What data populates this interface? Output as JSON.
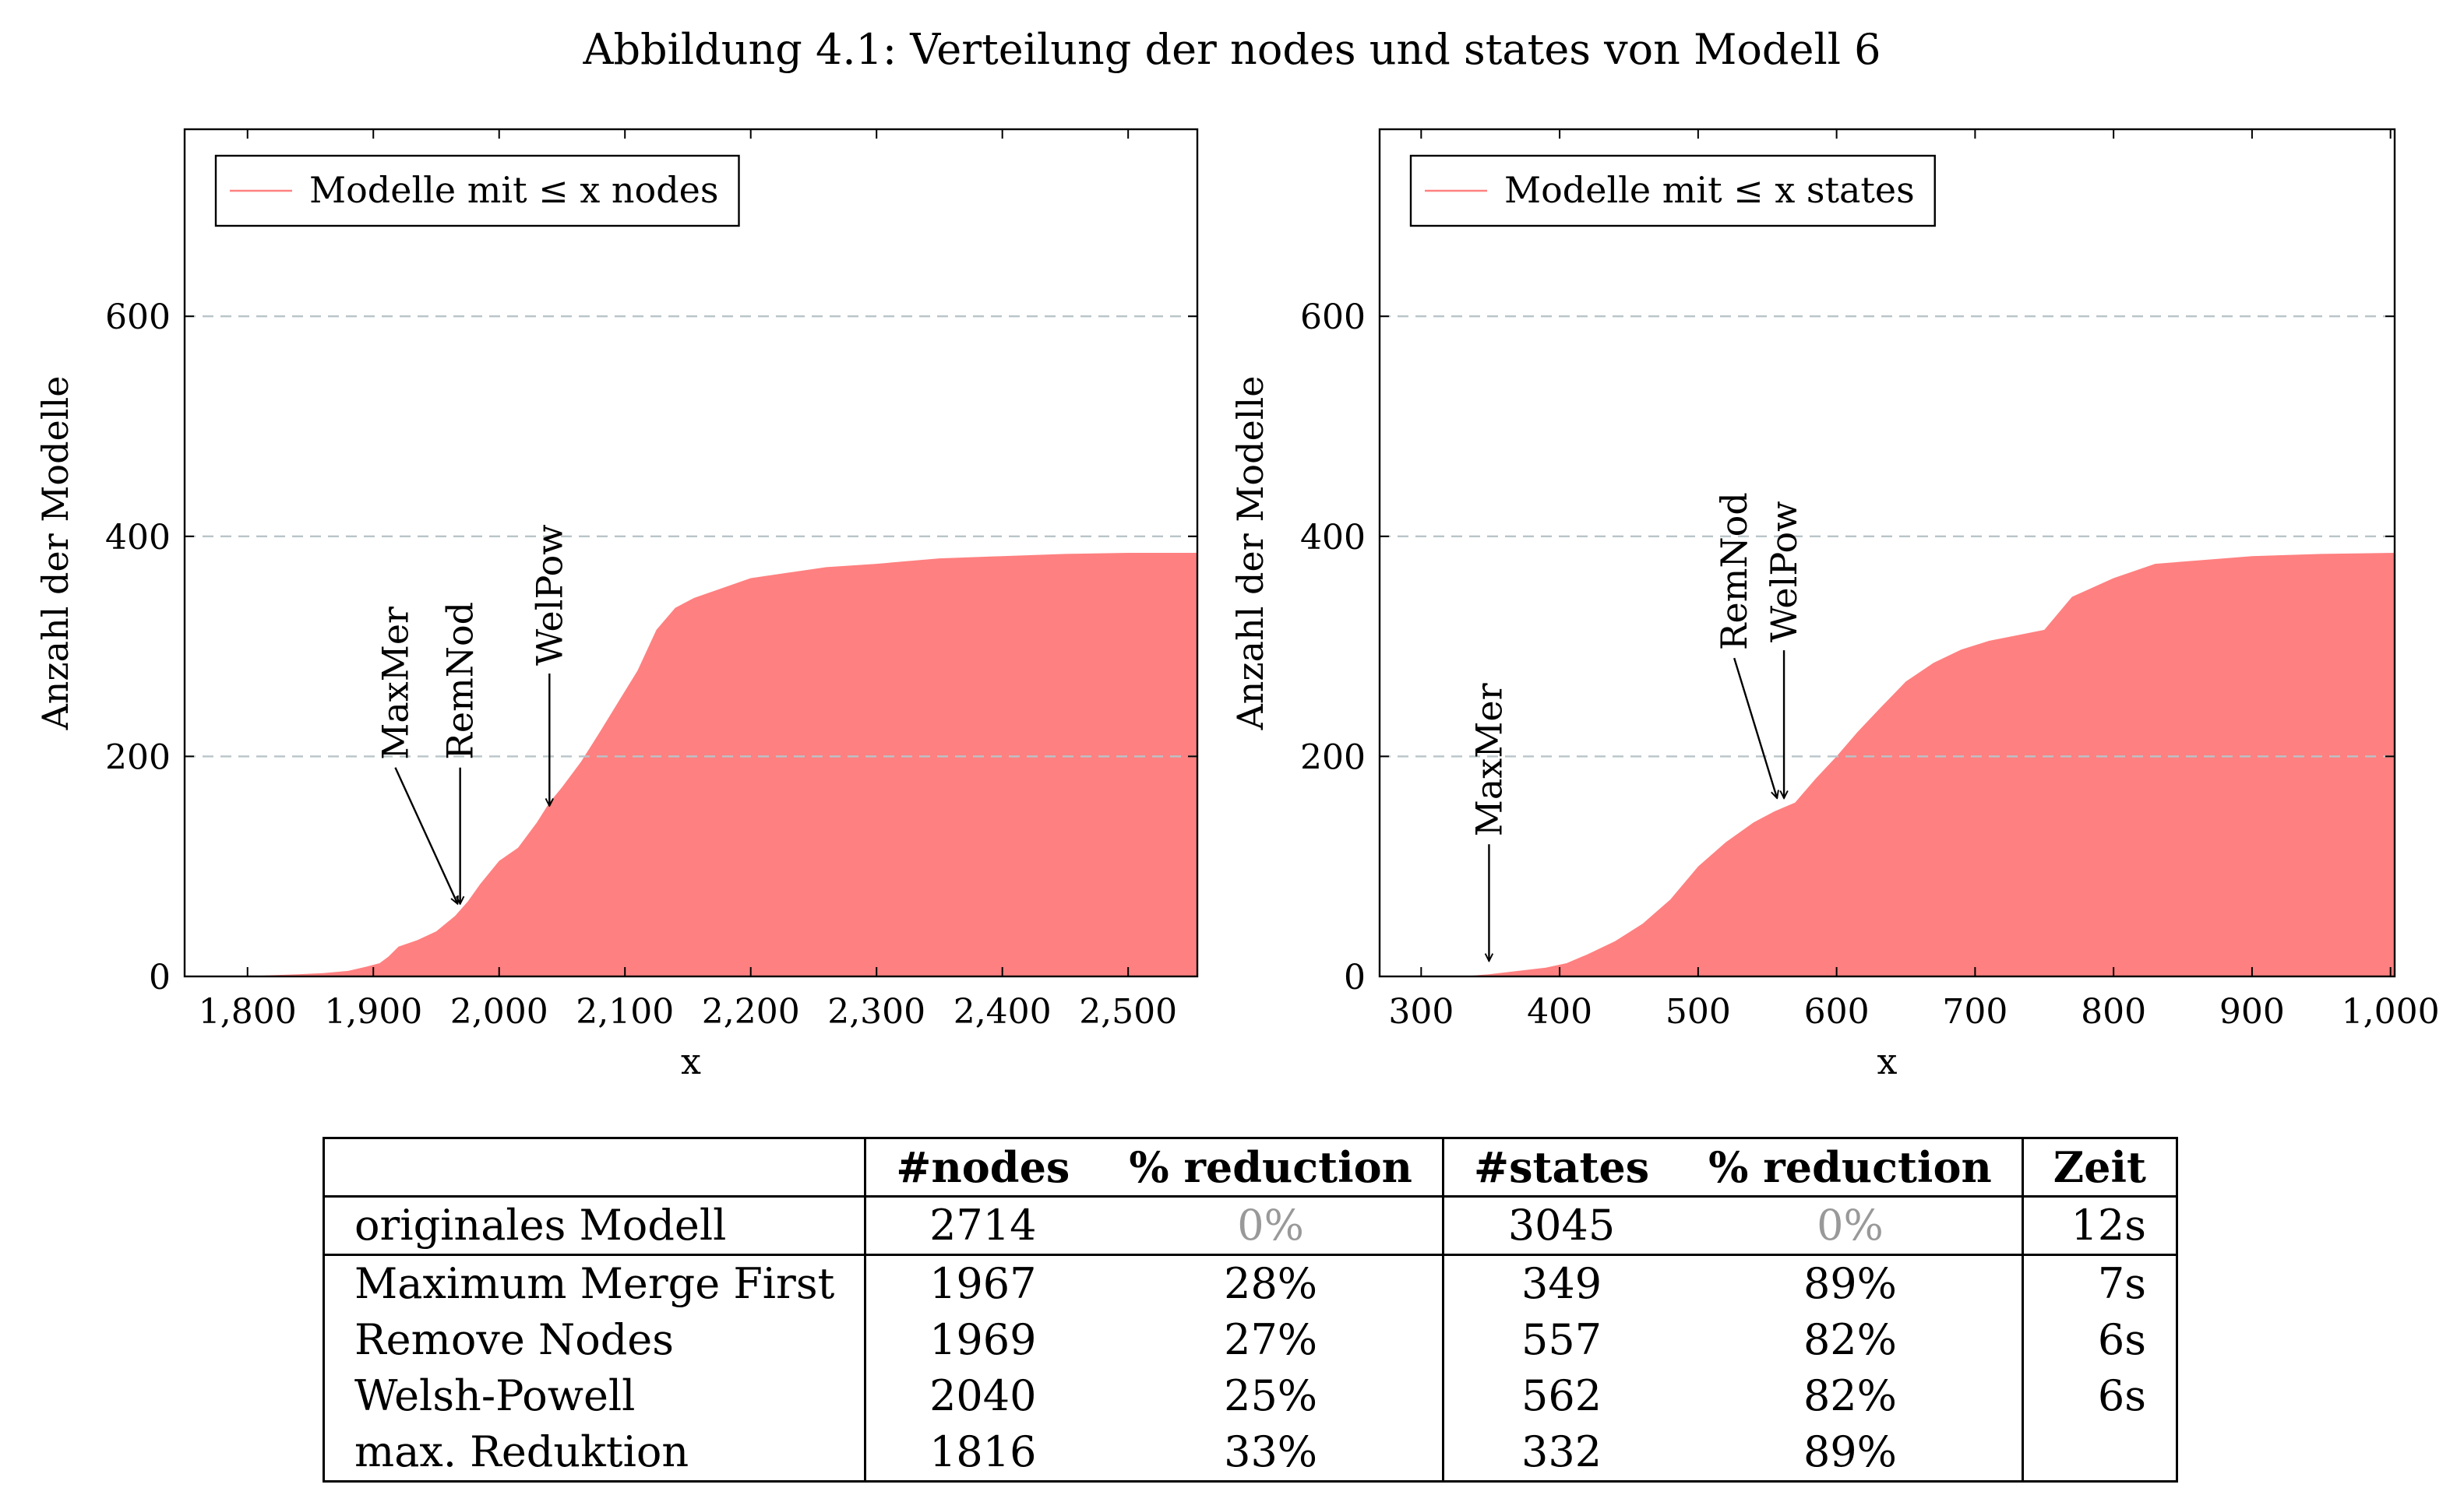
{
  "caption": "Abbildung 4.1: Verteilung der nodes und states von Modell 6",
  "chart_data": [
    {
      "type": "area",
      "legend": "Modelle mit ≤ x nodes",
      "legend_position": "top-left",
      "xlabel": "x",
      "ylabel": "Anzahl der Modelle",
      "xlim": [
        1750,
        2555
      ],
      "ylim": [
        0,
        770
      ],
      "grid": "horizontal dashed",
      "color": "#ff8080",
      "xticks": [
        {
          "v": 1800,
          "label": "1,800"
        },
        {
          "v": 1900,
          "label": "1,900"
        },
        {
          "v": 2000,
          "label": "2,000"
        },
        {
          "v": 2100,
          "label": "2,100"
        },
        {
          "v": 2200,
          "label": "2,200"
        },
        {
          "v": 2300,
          "label": "2,300"
        },
        {
          "v": 2400,
          "label": "2,400"
        },
        {
          "v": 2500,
          "label": "2,500"
        }
      ],
      "yticks": [
        {
          "v": 0,
          "label": "0"
        },
        {
          "v": 200,
          "label": "200"
        },
        {
          "v": 400,
          "label": "400"
        },
        {
          "v": 600,
          "label": "600"
        }
      ],
      "points": [
        [
          1750,
          0
        ],
        [
          1800,
          0
        ],
        [
          1816,
          1
        ],
        [
          1840,
          2
        ],
        [
          1860,
          3
        ],
        [
          1880,
          5
        ],
        [
          1895,
          9
        ],
        [
          1905,
          12
        ],
        [
          1912,
          18
        ],
        [
          1920,
          27
        ],
        [
          1935,
          33
        ],
        [
          1950,
          41
        ],
        [
          1965,
          55
        ],
        [
          1975,
          68
        ],
        [
          1985,
          84
        ],
        [
          2000,
          105
        ],
        [
          2015,
          117
        ],
        [
          2030,
          140
        ],
        [
          2040,
          158
        ],
        [
          2050,
          172
        ],
        [
          2065,
          195
        ],
        [
          2080,
          222
        ],
        [
          2095,
          250
        ],
        [
          2110,
          278
        ],
        [
          2125,
          315
        ],
        [
          2140,
          335
        ],
        [
          2155,
          344
        ],
        [
          2175,
          352
        ],
        [
          2200,
          362
        ],
        [
          2230,
          367
        ],
        [
          2260,
          372
        ],
        [
          2300,
          375
        ],
        [
          2350,
          380
        ],
        [
          2400,
          382
        ],
        [
          2450,
          384
        ],
        [
          2500,
          385
        ],
        [
          2555,
          385
        ]
      ],
      "annotations": [
        {
          "label": "MaxMer",
          "x": 1967,
          "y": 66
        },
        {
          "label": "RemNod",
          "x": 1969,
          "y": 66
        },
        {
          "label": "WelPow",
          "x": 2040,
          "y": 155
        }
      ]
    },
    {
      "type": "area",
      "legend": "Modelle mit ≤ x states",
      "legend_position": "top-left",
      "xlabel": "x",
      "ylabel": "Anzahl der Modelle",
      "xlim": [
        270,
        1003
      ],
      "ylim": [
        0,
        770
      ],
      "grid": "horizontal dashed",
      "color": "#ff8080",
      "xticks": [
        {
          "v": 300,
          "label": "300"
        },
        {
          "v": 400,
          "label": "400"
        },
        {
          "v": 500,
          "label": "500"
        },
        {
          "v": 600,
          "label": "600"
        },
        {
          "v": 700,
          "label": "700"
        },
        {
          "v": 800,
          "label": "800"
        },
        {
          "v": 900,
          "label": "900"
        },
        {
          "v": 1000,
          "label": "1,000"
        }
      ],
      "yticks": [
        {
          "v": 0,
          "label": "0"
        },
        {
          "v": 200,
          "label": "200"
        },
        {
          "v": 400,
          "label": "400"
        },
        {
          "v": 600,
          "label": "600"
        }
      ],
      "points": [
        [
          270,
          0
        ],
        [
          330,
          0
        ],
        [
          349,
          2
        ],
        [
          370,
          5
        ],
        [
          390,
          8
        ],
        [
          405,
          12
        ],
        [
          420,
          20
        ],
        [
          440,
          32
        ],
        [
          460,
          48
        ],
        [
          480,
          70
        ],
        [
          500,
          100
        ],
        [
          520,
          122
        ],
        [
          540,
          140
        ],
        [
          555,
          150
        ],
        [
          570,
          158
        ],
        [
          585,
          180
        ],
        [
          600,
          200
        ],
        [
          615,
          222
        ],
        [
          630,
          242
        ],
        [
          650,
          268
        ],
        [
          670,
          285
        ],
        [
          690,
          297
        ],
        [
          710,
          305
        ],
        [
          730,
          310
        ],
        [
          750,
          315
        ],
        [
          770,
          345
        ],
        [
          800,
          362
        ],
        [
          830,
          375
        ],
        [
          860,
          378
        ],
        [
          900,
          382
        ],
        [
          950,
          384
        ],
        [
          1003,
          385
        ]
      ],
      "annotations": [
        {
          "label": "MaxMer",
          "x": 349,
          "y": 14
        },
        {
          "label": "RemNod",
          "x": 557,
          "y": 162
        },
        {
          "label": "WelPow",
          "x": 562,
          "y": 162
        }
      ]
    }
  ],
  "table": {
    "headers": [
      "",
      "#nodes",
      "% reduction",
      "#states",
      "% reduction",
      "Zeit"
    ],
    "rows": [
      {
        "name": "originales Modell",
        "nodes": "2714",
        "nred": "0%",
        "states": "3045",
        "sred": "0%",
        "zeit": "12s"
      },
      {
        "name": "Maximum Merge First",
        "nodes": "1967",
        "nred": "28%",
        "states": "349",
        "sred": "89%",
        "zeit": "7s"
      },
      {
        "name": "Remove Nodes",
        "nodes": "1969",
        "nred": "27%",
        "states": "557",
        "sred": "82%",
        "zeit": "6s"
      },
      {
        "name": "Welsh-Powell",
        "nodes": "2040",
        "nred": "25%",
        "states": "562",
        "sred": "82%",
        "zeit": "6s"
      },
      {
        "name": "max. Reduktion",
        "nodes": "1816",
        "nred": "33%",
        "states": "332",
        "sred": "89%",
        "zeit": ""
      }
    ]
  }
}
